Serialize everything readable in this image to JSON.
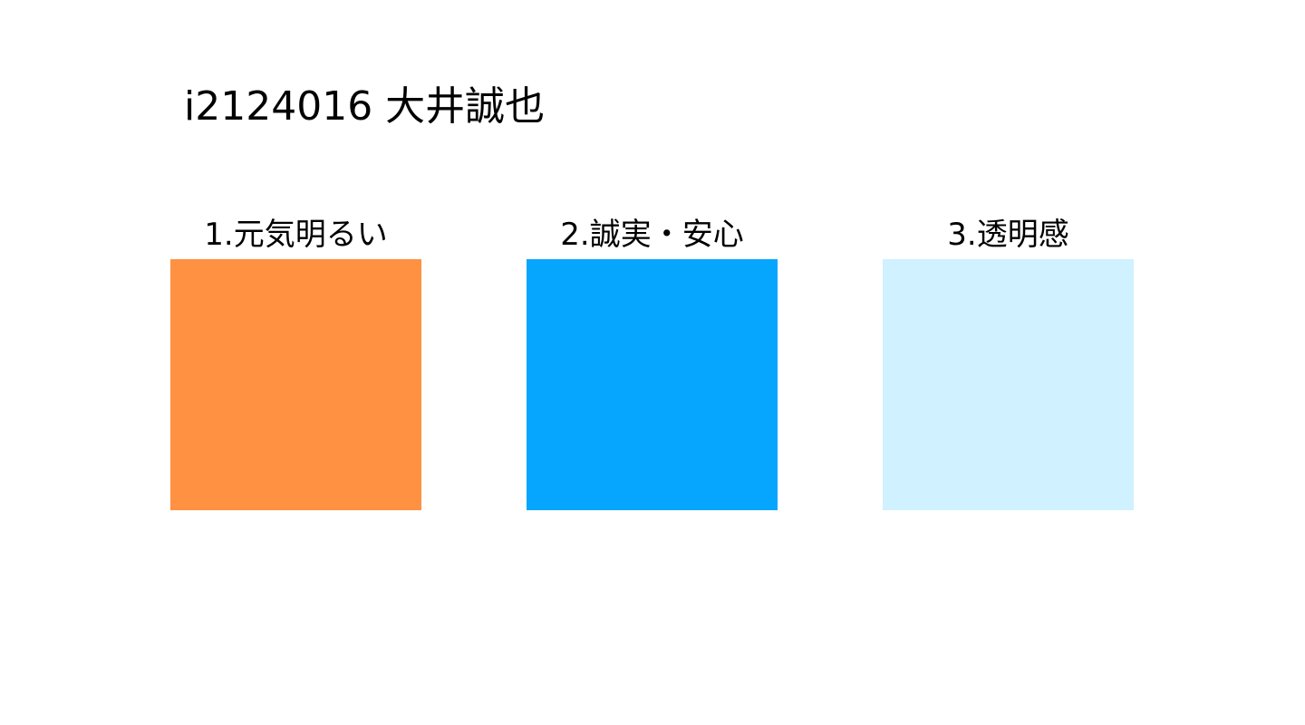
{
  "title": "i2124016 大井誠也",
  "swatches": [
    {
      "label": "1.元気明るい",
      "color": "#FF9142"
    },
    {
      "label": "2.誠実・安心",
      "color": "#06A6FF"
    },
    {
      "label": "3.透明感",
      "color": "#D0F1FF"
    }
  ]
}
